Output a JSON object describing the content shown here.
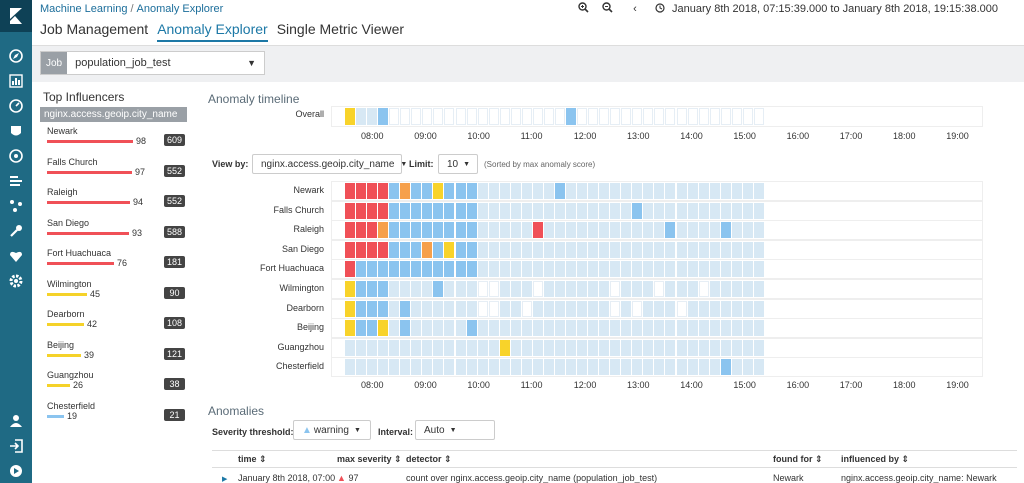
{
  "breadcrumb": {
    "root": "Machine Learning",
    "current": "Anomaly Explorer"
  },
  "tabs": [
    "Job Management",
    "Anomaly Explorer",
    "Single Metric Viewer"
  ],
  "time_range": "January 8th 2018, 07:15:39.000 to January 8th 2018, 19:15:38.000",
  "job": {
    "label": "Job",
    "value": "population_job_test"
  },
  "influencers": {
    "title": "Top Influencers",
    "field": "nginx.access.geoip.city_name",
    "items": [
      {
        "name": "Newark",
        "score": 98,
        "count": 609,
        "color": "#f05057"
      },
      {
        "name": "Falls Church",
        "score": 97,
        "count": 552,
        "color": "#f05057"
      },
      {
        "name": "Raleigh",
        "score": 94,
        "count": 552,
        "color": "#f05057"
      },
      {
        "name": "San Diego",
        "score": 93,
        "count": 588,
        "color": "#f05057"
      },
      {
        "name": "Fort Huachuaca",
        "score": 76,
        "count": 181,
        "color": "#f05057"
      },
      {
        "name": "Wilmington",
        "score": 45,
        "count": 90,
        "color": "#f5d229"
      },
      {
        "name": "Dearborn",
        "score": 42,
        "count": 108,
        "color": "#f5d229"
      },
      {
        "name": "Beijing",
        "score": 39,
        "count": 121,
        "color": "#f5d229"
      },
      {
        "name": "Guangzhou",
        "score": 26,
        "count": 38,
        "color": "#f5d229"
      },
      {
        "name": "Chesterfield",
        "score": 19,
        "count": 21,
        "color": "#8bc4ef"
      }
    ]
  },
  "timeline": {
    "title": "Anomaly timeline",
    "overall_label": "Overall",
    "hours": [
      "08:00",
      "09:00",
      "10:00",
      "11:00",
      "12:00",
      "13:00",
      "14:00",
      "15:00",
      "16:00",
      "17:00",
      "18:00",
      "19:00"
    ],
    "overall_colors": {
      "1": "yellow",
      "2": "light",
      "3": "light",
      "4": "blue",
      "21": "blue"
    },
    "view_by_label": "View by:",
    "view_by_value": "nginx.access.geoip.city_name",
    "limit_label": "Limit:",
    "limit_value": "10",
    "sorted_note": "(Sorted by max anomaly score)",
    "swimlanes": [
      {
        "name": "Newark",
        "colors": {
          "1": "red",
          "2": "red",
          "3": "red",
          "4": "red",
          "5": "blue",
          "6": "orange",
          "7": "blue",
          "8": "blue",
          "9": "yellow",
          "10": "blue",
          "11": "blue",
          "12": "blue",
          "20": "blue"
        }
      },
      {
        "name": "Falls Church",
        "colors": {
          "1": "red",
          "2": "red",
          "3": "red",
          "4": "red",
          "5": "blue",
          "6": "blue",
          "7": "blue",
          "8": "blue",
          "9": "blue",
          "10": "blue",
          "11": "blue",
          "12": "blue",
          "27": "blue"
        }
      },
      {
        "name": "Raleigh",
        "colors": {
          "1": "red",
          "2": "red",
          "3": "red",
          "4": "orange",
          "5": "blue",
          "6": "blue",
          "7": "blue",
          "8": "blue",
          "9": "blue",
          "10": "blue",
          "11": "blue",
          "12": "blue",
          "18": "red",
          "30": "blue",
          "35": "blue"
        }
      },
      {
        "name": "San Diego",
        "colors": {
          "1": "red",
          "2": "red",
          "3": "red",
          "4": "red",
          "5": "blue",
          "6": "blue",
          "7": "blue",
          "8": "orange",
          "9": "blue",
          "10": "yellow",
          "11": "blue",
          "12": "blue"
        }
      },
      {
        "name": "Fort Huachuaca",
        "colors": {
          "1": "red",
          "2": "blue",
          "3": "blue",
          "4": "blue",
          "5": "blue",
          "6": "blue",
          "7": "blue",
          "8": "blue",
          "9": "blue",
          "10": "blue",
          "11": "blue",
          "12": "blue"
        }
      },
      {
        "name": "Wilmington",
        "colors": {
          "1": "yellow",
          "2": "blue",
          "3": "blue",
          "4": "blue",
          "9": "blue",
          "13": "white",
          "14": "white",
          "18": "white",
          "25": "white",
          "29": "white",
          "33": "white"
        }
      },
      {
        "name": "Dearborn",
        "colors": {
          "1": "yellow",
          "2": "blue",
          "3": "blue",
          "4": "blue",
          "6": "blue",
          "13": "white",
          "14": "white",
          "17": "white",
          "25": "white",
          "27": "white",
          "31": "white"
        }
      },
      {
        "name": "Beijing",
        "colors": {
          "1": "yellow",
          "2": "blue",
          "3": "blue",
          "4": "yellow",
          "6": "blue",
          "12": "blue"
        }
      },
      {
        "name": "Guangzhou",
        "colors": {
          "1": "light",
          "2": "light",
          "3": "light",
          "4": "light",
          "5": "light",
          "6": "light",
          "7": "light",
          "8": "light",
          "9": "light",
          "10": "light",
          "11": "light",
          "12": "light",
          "13": "light",
          "14": "light",
          "15": "yellow",
          "16": "light",
          "17": "light",
          "18": "light",
          "19": "light",
          "20": "light",
          "21": "light",
          "22": "light",
          "23": "light",
          "24": "light",
          "25": "light",
          "26": "light",
          "27": "light",
          "28": "light",
          "29": "light",
          "30": "light",
          "31": "light",
          "32": "light",
          "33": "light",
          "34": "light",
          "35": "light",
          "36": "light",
          "37": "light",
          "38": "light"
        }
      },
      {
        "name": "Chesterfield",
        "colors": {
          "1": "light",
          "5": "light",
          "9": "light",
          "13": "light",
          "19": "light",
          "23": "light",
          "27": "light",
          "31": "light",
          "35": "blue",
          "36": "light",
          "38": "light"
        }
      }
    ]
  },
  "colors": {
    "red": "#f05057",
    "orange": "#f6a04b",
    "yellow": "#f8d32a",
    "blue": "#8bc4ef",
    "light": "#d7e8f4",
    "white": "#ffffff"
  },
  "anomalies": {
    "title": "Anomalies",
    "severity_label": "Severity threshold:",
    "severity_value": "warning",
    "interval_label": "Interval:",
    "interval_value": "Auto",
    "columns": [
      "time",
      "max severity",
      "detector",
      "found for",
      "influenced by"
    ],
    "rows": [
      {
        "time": "January 8th 2018, 07:00",
        "severity": "97",
        "detector": "count over nginx.access.geoip.city_name (population_job_test)",
        "found_for": "Newark",
        "influenced_by": "nginx.access.geoip.city_name: Newark"
      }
    ]
  }
}
